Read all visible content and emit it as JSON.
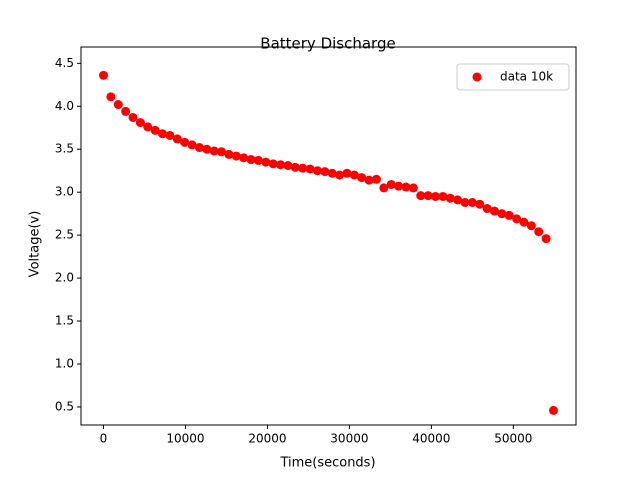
{
  "chart_data": {
    "type": "scatter",
    "title": "Battery Discharge",
    "x_label": "Time(seconds)",
    "y_label": "Voltage(v)",
    "series": [
      {
        "name": "data 10k",
        "color": "#ff0000",
        "x": [
          0,
          900,
          1800,
          2700,
          3600,
          4500,
          5400,
          6300,
          7200,
          8100,
          9000,
          9900,
          10800,
          11700,
          12600,
          13500,
          14400,
          15300,
          16200,
          17100,
          18000,
          18900,
          19800,
          20700,
          21600,
          22500,
          23400,
          24300,
          25200,
          26100,
          27000,
          27900,
          28800,
          29700,
          30600,
          31500,
          32400,
          33300,
          34200,
          35100,
          36000,
          36900,
          37800,
          38700,
          39600,
          40500,
          41400,
          42300,
          43200,
          44100,
          45000,
          45900,
          46800,
          47700,
          48600,
          49500,
          50400,
          51300,
          52200,
          53100,
          54000,
          54900
        ],
        "values": [
          4.36,
          4.11,
          4.02,
          3.94,
          3.87,
          3.81,
          3.76,
          3.72,
          3.68,
          3.66,
          3.62,
          3.58,
          3.55,
          3.52,
          3.5,
          3.48,
          3.47,
          3.44,
          3.42,
          3.4,
          3.38,
          3.37,
          3.35,
          3.33,
          3.32,
          3.31,
          3.29,
          3.28,
          3.27,
          3.25,
          3.24,
          3.22,
          3.2,
          3.22,
          3.2,
          3.17,
          3.14,
          3.15,
          3.05,
          3.09,
          3.07,
          3.06,
          3.05,
          2.96,
          2.96,
          2.95,
          2.95,
          2.93,
          2.91,
          2.88,
          2.88,
          2.86,
          2.81,
          2.78,
          2.75,
          2.73,
          2.69,
          2.65,
          2.61,
          2.54,
          2.46,
          0.46
        ]
      }
    ],
    "xlim": [
      -2745,
      57645
    ],
    "ylim": [
      0.29,
      4.69
    ],
    "xticks": [
      0,
      10000,
      20000,
      30000,
      40000,
      50000
    ],
    "yticks": [
      0.5,
      {
        "value": 1,
        "label": "1.0"
      },
      1.5,
      {
        "value": 2,
        "label": "2.0"
      },
      2.5,
      {
        "value": 3,
        "label": "3.0"
      },
      3.5,
      {
        "value": 4,
        "label": "4.0"
      },
      4.5
    ],
    "legend": "upper right",
    "grid": false
  }
}
